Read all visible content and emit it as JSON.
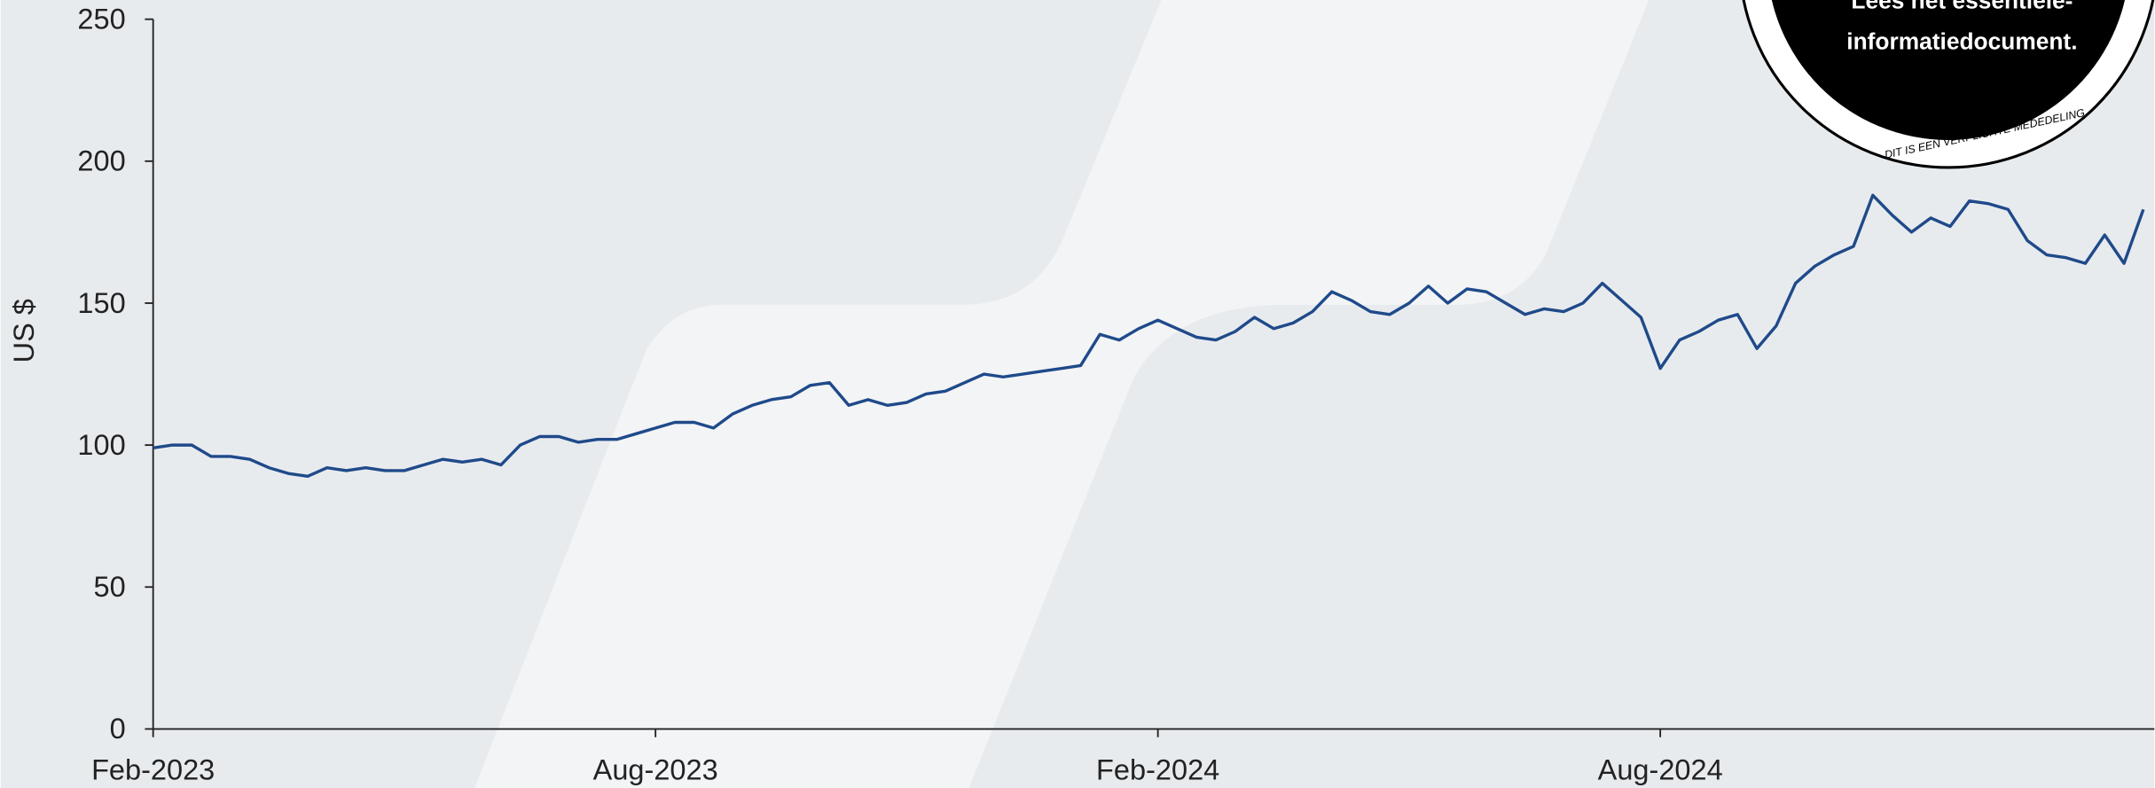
{
  "chart_data": {
    "type": "line",
    "y_label": "US $",
    "categories": [
      "Feb-2023",
      null,
      null,
      null,
      null,
      null,
      null,
      null,
      null,
      null,
      null,
      null,
      null,
      null,
      null,
      null,
      null,
      null,
      null,
      null,
      null,
      null,
      null,
      null,
      null,
      null,
      "Aug-2023",
      null,
      null,
      null,
      null,
      null,
      null,
      null,
      null,
      null,
      null,
      null,
      null,
      null,
      null,
      null,
      null,
      null,
      null,
      null,
      null,
      null,
      null,
      null,
      null,
      null,
      "Feb-2024",
      null,
      null,
      null,
      null,
      null,
      null,
      null,
      null,
      null,
      null,
      null,
      null,
      null,
      null,
      null,
      null,
      null,
      null,
      null,
      null,
      null,
      null,
      null,
      null,
      null,
      "Aug-2024",
      null,
      null,
      null,
      null,
      null,
      null,
      null,
      null,
      null,
      null,
      null,
      null,
      null,
      null,
      null,
      null,
      null,
      null,
      null,
      null,
      null,
      null,
      null,
      null,
      null
    ],
    "values": [
      99,
      100,
      100,
      96,
      96,
      95,
      92,
      90,
      89,
      92,
      91,
      92,
      91,
      91,
      93,
      95,
      94,
      95,
      93,
      100,
      103,
      103,
      101,
      102,
      102,
      104,
      106,
      108,
      108,
      106,
      111,
      114,
      116,
      117,
      121,
      122,
      114,
      116,
      114,
      115,
      118,
      119,
      122,
      125,
      124,
      125,
      126,
      127,
      128,
      139,
      137,
      141,
      144,
      141,
      138,
      137,
      140,
      145,
      141,
      143,
      147,
      154,
      151,
      147,
      146,
      150,
      156,
      150,
      155,
      154,
      150,
      146,
      148,
      147,
      150,
      157,
      151,
      145,
      127,
      137,
      140,
      144,
      146,
      134,
      142,
      157,
      163,
      167,
      170,
      188,
      181,
      175,
      180,
      177,
      186,
      185,
      183,
      172,
      167,
      166,
      164,
      174,
      164,
      183
    ],
    "color": "#1f4a8a",
    "ylim": [
      0,
      250
    ],
    "yticks": [
      0,
      50,
      100,
      150,
      200,
      250
    ],
    "grid": false
  },
  "badge": {
    "lines": [
      "Lees het essentiële-",
      "informatiedocument."
    ],
    "ring_text": "DIT IS EEN VERPLICHTE MEDEDELING"
  }
}
